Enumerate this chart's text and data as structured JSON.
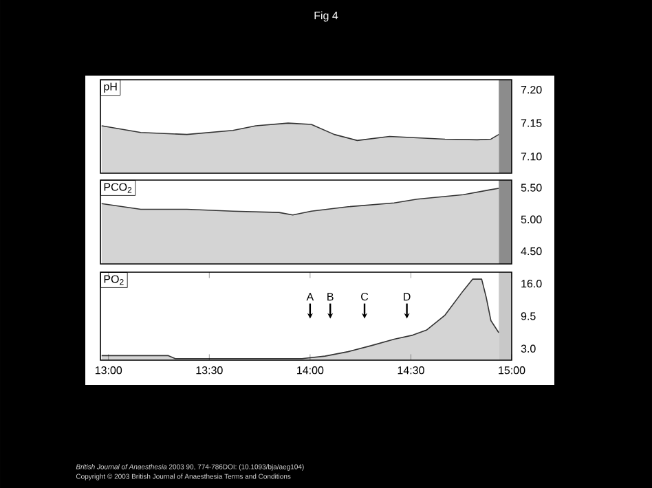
{
  "chart_data": [
    {
      "type": "area",
      "title": "Fig 4",
      "ylabel": "pH",
      "tick_labels": "y",
      "color": "#d4d4d4",
      "x": [
        12.966,
        13.16,
        13.389,
        13.617,
        13.731,
        13.891,
        14.006,
        14.12,
        14.234,
        14.394,
        14.531,
        14.669,
        14.829,
        14.897,
        14.936
      ],
      "values": [
        7.146,
        7.136,
        7.133,
        7.139,
        7.146,
        7.15,
        7.148,
        7.133,
        7.124,
        7.13,
        7.128,
        7.126,
        7.125,
        7.126,
        7.133
      ],
      "xlim": [
        12.96,
        15.0
      ],
      "ylim": [
        7.075,
        7.215
      ],
      "yticks": [
        {
          "value": 7.1,
          "label": "7.10"
        },
        {
          "value": 7.15,
          "label": "7.15"
        },
        {
          "value": 7.2,
          "label": "7.20"
        }
      ],
      "bands": [
        {
          "axis": "x",
          "from": 14.936,
          "to": 15.0,
          "color": "#8c8c8c"
        }
      ]
    },
    {
      "type": "area",
      "ylabel": "PCO$_{2}$",
      "tick_labels": "y",
      "color": "#d4d4d4",
      "x": [
        12.966,
        13.16,
        13.389,
        13.617,
        13.846,
        13.914,
        14.006,
        14.189,
        14.417,
        14.531,
        14.76,
        14.897,
        14.936
      ],
      "values": [
        5.25,
        5.16,
        5.16,
        5.13,
        5.11,
        5.07,
        5.13,
        5.2,
        5.26,
        5.32,
        5.39,
        5.47,
        5.49
      ],
      "xlim": [
        12.96,
        15.0
      ],
      "ylim": [
        4.3,
        5.62
      ],
      "yticks": [
        {
          "value": 4.5,
          "label": "4.50"
        },
        {
          "value": 5.0,
          "label": "5.00"
        },
        {
          "value": 5.5,
          "label": "5.50"
        }
      ],
      "bands": [
        {
          "axis": "x",
          "from": 14.936,
          "to": 15.0,
          "color": "#8c8c8c"
        }
      ]
    },
    {
      "type": "area",
      "ylabel": "PO$_{2}$",
      "color": "#d4d4d4",
      "x": [
        12.966,
        13.297,
        13.331,
        13.617,
        13.96,
        14.074,
        14.189,
        14.303,
        14.417,
        14.509,
        14.577,
        14.669,
        14.76,
        14.806,
        14.851,
        14.874,
        14.897,
        14.936
      ],
      "values": [
        1.6,
        1.6,
        1.0,
        1.0,
        1.0,
        1.5,
        2.4,
        3.6,
        4.9,
        5.7,
        6.7,
        9.7,
        14.6,
        16.9,
        16.9,
        13.2,
        8.6,
        6.2
      ],
      "xlim": [
        12.96,
        15.0
      ],
      "ylim": [
        0.7,
        18.3
      ],
      "yticks": [
        {
          "value": 3.0,
          "label": "3.0"
        },
        {
          "value": 9.5,
          "label": "9.5"
        },
        {
          "value": 16.0,
          "label": "16.0"
        }
      ],
      "xticks": [
        {
          "value": 13.0,
          "label": "13:00"
        },
        {
          "value": 13.5,
          "label": "13:30"
        },
        {
          "value": 14.0,
          "label": "14:00"
        },
        {
          "value": 14.5,
          "label": "14:30"
        },
        {
          "value": 15.0,
          "label": "15:00"
        }
      ],
      "bands": [
        {
          "axis": "x",
          "from": 14.936,
          "to": 15.0,
          "color": "#c8c8c8"
        }
      ],
      "annotations": [
        {
          "text": "A",
          "x": 14.0,
          "y": 9.0
        },
        {
          "text": "B",
          "x": 14.1,
          "y": 9.0
        },
        {
          "text": "C",
          "x": 14.27,
          "y": 9.0
        },
        {
          "text": "D",
          "x": 14.48,
          "y": 9.0
        },
        "*British Journal of Anaesthesia* 2003 90, 774-786DOI: (10.1093/bja/aeg104)",
        "Copyright © 2003 British Journal of Anaesthesia Terms and Conditions"
      ]
    }
  ]
}
